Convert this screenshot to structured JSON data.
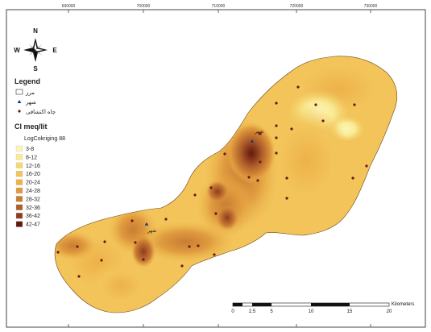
{
  "axis": {
    "top_ticks": [
      "690000",
      "700000",
      "710000",
      "720000",
      "730000"
    ]
  },
  "compass": {
    "n": "N",
    "s": "S",
    "e": "E",
    "w": "W"
  },
  "legend": {
    "title": "Legend",
    "boundary_label": "مرز",
    "city_label": "شهر",
    "well_label": "چاه اکتشافی",
    "variable_title": "Cl meq/lit",
    "method_label": "LogCokriging 88",
    "classes": [
      {
        "label": "3-8",
        "color": "#fbf5b8"
      },
      {
        "label": "8-12",
        "color": "#f9eb95"
      },
      {
        "label": "12-16",
        "color": "#f6d873"
      },
      {
        "label": "16-20",
        "color": "#f2c45a"
      },
      {
        "label": "20-24",
        "color": "#eeb24a"
      },
      {
        "label": "24-28",
        "color": "#df9a3e"
      },
      {
        "label": "28-32",
        "color": "#c97d33"
      },
      {
        "label": "32-36",
        "color": "#b05f2a"
      },
      {
        "label": "36-42",
        "color": "#8d3d1e"
      },
      {
        "label": "42-47",
        "color": "#621a10"
      }
    ]
  },
  "towns": {
    "north_town": "شهر",
    "west_town": "شهر"
  },
  "scalebar": {
    "labels": [
      "0",
      "2.5",
      "5",
      "10",
      "15",
      "20"
    ],
    "unit": "Kilometers"
  }
}
